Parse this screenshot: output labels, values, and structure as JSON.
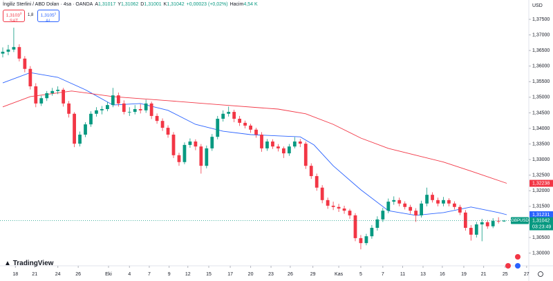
{
  "header": {
    "symbol": "İngiliz Sterlini / ABD Doları · 4sa · OANDA",
    "ohlc": [
      {
        "label": "A",
        "value": "1,31017"
      },
      {
        "label": "Y",
        "value": "1,31062"
      },
      {
        "label": "D",
        "value": "1,31001"
      },
      {
        "label": "K",
        "value": "1,31042"
      },
      {
        "value": "+0,00023 (+0,02%)"
      },
      {
        "label": "Hacim",
        "value": "4,54 K"
      }
    ],
    "sell": {
      "price": "1,3103",
      "sup": "3",
      "label": "SAT"
    },
    "spread": "1,8",
    "buy": {
      "price": "1,3105",
      "sup": "1",
      "label": "AL"
    },
    "currency": "USD",
    "logo": "TradingView"
  },
  "chart_data": {
    "type": "candlestick",
    "up_color": "#089981",
    "down_color": "#f23645",
    "grid": false,
    "xlim": [
      -0.5,
      95.5
    ],
    "ylim": [
      1.29636,
      1.3812
    ],
    "yticks": [
      {
        "value": 1.375,
        "label": "1,37500"
      },
      {
        "value": 1.37,
        "label": "1,37000"
      },
      {
        "value": 1.365,
        "label": "1,36500"
      },
      {
        "value": 1.36,
        "label": "1,36000"
      },
      {
        "value": 1.355,
        "label": "1,35500"
      },
      {
        "value": 1.35,
        "label": "1,35000"
      },
      {
        "value": 1.345,
        "label": "1,34500"
      },
      {
        "value": 1.34,
        "label": "1,34000"
      },
      {
        "value": 1.335,
        "label": "1,33500"
      },
      {
        "value": 1.33,
        "label": "1,33000"
      },
      {
        "value": 1.325,
        "label": "1,32500"
      },
      {
        "value": 1.32,
        "label": "1,32000"
      },
      {
        "value": 1.315,
        "label": "1,31500"
      },
      {
        "value": 1.31,
        "label": "1,31000"
      },
      {
        "value": 1.305,
        "label": "1,30500"
      },
      {
        "value": 1.3,
        "label": "1,30000"
      }
    ],
    "xticks": [
      {
        "value": 2.3,
        "label": "18"
      },
      {
        "value": 5.8,
        "label": "21"
      },
      {
        "value": 10,
        "label": "24"
      },
      {
        "value": 13.7,
        "label": "26"
      },
      {
        "value": 19.2,
        "label": "Eki"
      },
      {
        "value": 23,
        "label": "4"
      },
      {
        "value": 26.6,
        "label": "7"
      },
      {
        "value": 30.2,
        "label": "9"
      },
      {
        "value": 33.6,
        "label": "12"
      },
      {
        "value": 37.4,
        "label": "15"
      },
      {
        "value": 41.3,
        "label": "17"
      },
      {
        "value": 45,
        "label": "20"
      },
      {
        "value": 48.7,
        "label": "23"
      },
      {
        "value": 52.2,
        "label": "26"
      },
      {
        "value": 56.3,
        "label": "29"
      },
      {
        "value": 61,
        "label": "Kas"
      },
      {
        "value": 65,
        "label": "5"
      },
      {
        "value": 69,
        "label": "7"
      },
      {
        "value": 72.6,
        "label": "11"
      },
      {
        "value": 76.3,
        "label": "13"
      },
      {
        "value": 79.8,
        "label": "16"
      },
      {
        "value": 83.7,
        "label": "19"
      },
      {
        "value": 87.3,
        "label": "21"
      },
      {
        "value": 91.2,
        "label": "25"
      },
      {
        "value": 95.1,
        "label": "27"
      }
    ],
    "candles": [
      [
        1.364,
        1.366,
        1.3628,
        1.3646
      ],
      [
        1.3646,
        1.3668,
        1.3635,
        1.3653
      ],
      [
        1.3653,
        1.3723,
        1.3645,
        1.3661
      ],
      [
        1.3661,
        1.367,
        1.3615,
        1.3624
      ],
      [
        1.3624,
        1.3632,
        1.358,
        1.3591
      ],
      [
        1.3591,
        1.36,
        1.3525,
        1.3535
      ],
      [
        1.3535,
        1.3545,
        1.3468,
        1.348
      ],
      [
        1.348,
        1.3505,
        1.3472,
        1.3497
      ],
      [
        1.3497,
        1.352,
        1.3488,
        1.3513
      ],
      [
        1.3513,
        1.353,
        1.3505,
        1.352
      ],
      [
        1.352,
        1.3535,
        1.351,
        1.3524
      ],
      [
        1.3524,
        1.353,
        1.347,
        1.348
      ],
      [
        1.348,
        1.3488,
        1.3435,
        1.3447
      ],
      [
        1.3447,
        1.3452,
        1.334,
        1.3351
      ],
      [
        1.3351,
        1.339,
        1.3342,
        1.338
      ],
      [
        1.338,
        1.342,
        1.3372,
        1.3413
      ],
      [
        1.3413,
        1.3455,
        1.3405,
        1.3447
      ],
      [
        1.3447,
        1.3468,
        1.3438,
        1.3458
      ],
      [
        1.3458,
        1.3472,
        1.3445,
        1.3462
      ],
      [
        1.3462,
        1.3485,
        1.3455,
        1.3475
      ],
      [
        1.3475,
        1.353,
        1.3468,
        1.3506
      ],
      [
        1.3506,
        1.3515,
        1.347,
        1.348
      ],
      [
        1.348,
        1.349,
        1.3445,
        1.3453
      ],
      [
        1.3453,
        1.3468,
        1.344,
        1.3453
      ],
      [
        1.3453,
        1.3475,
        1.3445,
        1.3462
      ],
      [
        1.3462,
        1.3478,
        1.3448,
        1.3458
      ],
      [
        1.3458,
        1.3492,
        1.345,
        1.348
      ],
      [
        1.348,
        1.3486,
        1.343,
        1.344
      ],
      [
        1.344,
        1.3448,
        1.3415,
        1.3424
      ],
      [
        1.3424,
        1.3432,
        1.3392,
        1.3402
      ],
      [
        1.3402,
        1.341,
        1.337,
        1.338
      ],
      [
        1.338,
        1.3388,
        1.3305,
        1.3314
      ],
      [
        1.3314,
        1.3322,
        1.328,
        1.3292
      ],
      [
        1.3292,
        1.3355,
        1.3285,
        1.3347
      ],
      [
        1.3347,
        1.3368,
        1.3338,
        1.3358
      ],
      [
        1.3358,
        1.3365,
        1.333,
        1.3342
      ],
      [
        1.3342,
        1.335,
        1.3255,
        1.328
      ],
      [
        1.328,
        1.3345,
        1.3272,
        1.3336
      ],
      [
        1.3336,
        1.3382,
        1.3328,
        1.3373
      ],
      [
        1.3373,
        1.344,
        1.3365,
        1.3431
      ],
      [
        1.3431,
        1.3458,
        1.3422,
        1.3447
      ],
      [
        1.3447,
        1.347,
        1.3438,
        1.3453
      ],
      [
        1.3453,
        1.346,
        1.342,
        1.3431
      ],
      [
        1.3431,
        1.344,
        1.3408,
        1.3418
      ],
      [
        1.3418,
        1.3425,
        1.34,
        1.3409
      ],
      [
        1.3409,
        1.3415,
        1.3386,
        1.3396
      ],
      [
        1.3396,
        1.3402,
        1.337,
        1.338
      ],
      [
        1.338,
        1.3388,
        1.3325,
        1.3336
      ],
      [
        1.3336,
        1.3366,
        1.3328,
        1.3358
      ],
      [
        1.3358,
        1.3365,
        1.3334,
        1.3342
      ],
      [
        1.3342,
        1.335,
        1.3326,
        1.3336
      ],
      [
        1.3336,
        1.3342,
        1.3305,
        1.332
      ],
      [
        1.332,
        1.335,
        1.3312,
        1.3342
      ],
      [
        1.3342,
        1.3372,
        1.3336,
        1.3358
      ],
      [
        1.3358,
        1.3366,
        1.334,
        1.3351
      ],
      [
        1.3351,
        1.3358,
        1.327,
        1.328
      ],
      [
        1.328,
        1.3288,
        1.3238,
        1.3247
      ],
      [
        1.3247,
        1.3255,
        1.32,
        1.321
      ],
      [
        1.321,
        1.3218,
        1.316,
        1.317
      ],
      [
        1.317,
        1.3178,
        1.3142,
        1.3152
      ],
      [
        1.3152,
        1.3165,
        1.3138,
        1.3148
      ],
      [
        1.3148,
        1.3158,
        1.3132,
        1.3143
      ],
      [
        1.3143,
        1.3152,
        1.3126,
        1.3136
      ],
      [
        1.3136,
        1.3142,
        1.311,
        1.3121
      ],
      [
        1.3121,
        1.3128,
        1.3038,
        1.3048
      ],
      [
        1.3048,
        1.3058,
        1.3012,
        1.3032
      ],
      [
        1.3032,
        1.3062,
        1.3025,
        1.3054
      ],
      [
        1.3054,
        1.309,
        1.3046,
        1.3081
      ],
      [
        1.3081,
        1.3118,
        1.3072,
        1.3108
      ],
      [
        1.3108,
        1.3145,
        1.31,
        1.3136
      ],
      [
        1.3136,
        1.3175,
        1.3128,
        1.3165
      ],
      [
        1.3165,
        1.3182,
        1.3155,
        1.317
      ],
      [
        1.317,
        1.3178,
        1.315,
        1.3159
      ],
      [
        1.3159,
        1.3166,
        1.314,
        1.3148
      ],
      [
        1.3148,
        1.3155,
        1.3126,
        1.3136
      ],
      [
        1.3136,
        1.3144,
        1.31,
        1.3121
      ],
      [
        1.3121,
        1.3168,
        1.3114,
        1.3159
      ],
      [
        1.3159,
        1.321,
        1.315,
        1.3187
      ],
      [
        1.3187,
        1.3195,
        1.3162,
        1.317
      ],
      [
        1.317,
        1.3178,
        1.315,
        1.3159
      ],
      [
        1.3159,
        1.318,
        1.315,
        1.317
      ],
      [
        1.317,
        1.3176,
        1.315,
        1.3159
      ],
      [
        1.3159,
        1.3166,
        1.314,
        1.3148
      ],
      [
        1.3148,
        1.3155,
        1.3122,
        1.313
      ],
      [
        1.313,
        1.3138,
        1.3072,
        1.3081
      ],
      [
        1.3081,
        1.309,
        1.304,
        1.3059
      ],
      [
        1.3059,
        1.31,
        1.305,
        1.3092
      ],
      [
        1.3092,
        1.311,
        1.3038,
        1.3099
      ],
      [
        1.3099,
        1.3106,
        1.3078,
        1.3086
      ],
      [
        1.3086,
        1.3112,
        1.308,
        1.3103
      ],
      [
        1.3103,
        1.3115,
        1.3095,
        1.3102
      ],
      [
        1.31017,
        1.31062,
        1.31001,
        1.31042
      ]
    ],
    "lines": [
      {
        "color": "#2962ff",
        "x": [
          0,
          5,
          10,
          15,
          20,
          25,
          30,
          35,
          40,
          45,
          50,
          54,
          56.5,
          60,
          65,
          70,
          75,
          80,
          85,
          90,
          91.5
        ],
        "values": [
          1.3546,
          1.3579,
          1.3564,
          1.3524,
          1.3475,
          1.348,
          1.3458,
          1.3413,
          1.3391,
          1.338,
          1.3376,
          1.3373,
          1.3347,
          1.328,
          1.3203,
          1.3136,
          1.3121,
          1.313,
          1.3148,
          1.313,
          1.31231
        ]
      },
      {
        "color": "#f23645",
        "x": [
          0,
          5,
          12.5,
          20,
          30,
          40,
          50,
          55,
          60,
          65,
          70,
          75,
          80,
          85,
          91.5
        ],
        "values": [
          1.3469,
          1.3502,
          1.352,
          1.3502,
          1.3489,
          1.3475,
          1.3462,
          1.3447,
          1.3413,
          1.3369,
          1.3336,
          1.3314,
          1.3292,
          1.3263,
          1.32238
        ]
      }
    ],
    "price_labels": [
      {
        "value": 1.32238,
        "label": "1,32238",
        "color": "#f23645"
      },
      {
        "value": 1.31231,
        "label": "1,31231",
        "color": "#2962ff"
      },
      {
        "value": 1.31042,
        "label": "1,31042",
        "color": "#089981",
        "tag": "GBPUSD",
        "countdown": "03:23:49"
      }
    ]
  }
}
